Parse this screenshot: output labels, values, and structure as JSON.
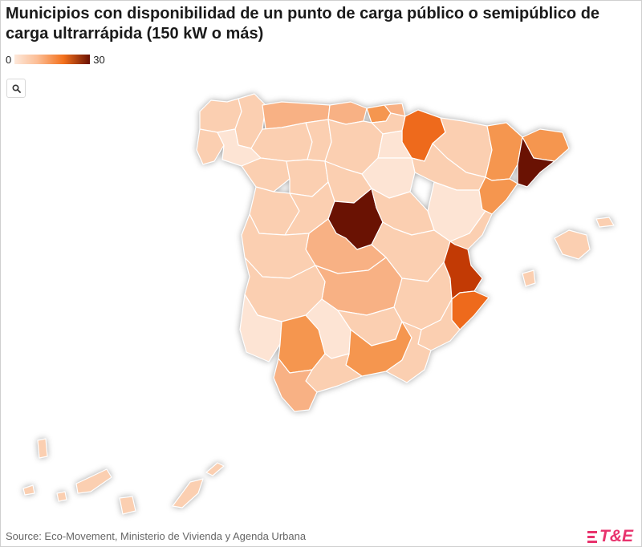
{
  "title": "Municipios con disponibilidad de un punto de carga público o semipúblico de carga ultrarrápida (150 kW o más)",
  "legend": {
    "min_label": "0",
    "max_label": "30",
    "color_min": "#fde8da",
    "color_max": "#6b1203"
  },
  "zoom_icon": "search-icon",
  "source": "Source: Eco-Movement, Ministerio de Vivienda y Agenda Urbana",
  "logo": {
    "text": "T&E",
    "color": "#e8336d"
  },
  "colors": {
    "lightest": "#fde4d4",
    "light": "#fbcfb1",
    "mid": "#f8b184",
    "medium": "#f5964f",
    "orange": "#ee6a1c",
    "dark_orange": "#c23a05",
    "darkest": "#6a1203"
  }
}
